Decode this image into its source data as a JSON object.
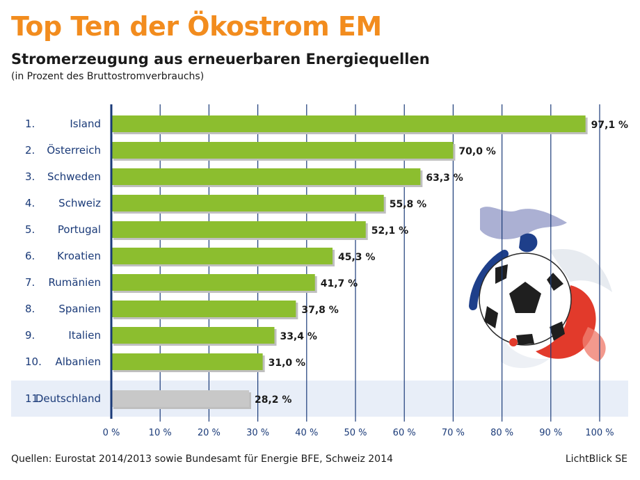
{
  "title": "Top Ten der Ökostrom EM",
  "subtitle": "Stromerzeugung aus erneuerbaren Energiequellen",
  "note": "(in Prozent des Bruttostromverbrauchs)",
  "footer": {
    "source": "Quellen: Eurostat 2014/2013 sowie Bundesamt für Energie BFE, Schweiz 2014",
    "credit": "LichtBlick SE"
  },
  "colors": {
    "bar": "#8cbe2f",
    "highlight_bar": "#c8c8c8",
    "axis": "#1a3a78",
    "gridline": "#1a3a78",
    "highlight_band": "#e8eef8",
    "title": "#f28c1e"
  },
  "chart_data": {
    "type": "bar",
    "orientation": "horizontal",
    "ranks": [
      "1.",
      "2.",
      "3.",
      "4.",
      "5.",
      "6.",
      "7.",
      "8.",
      "9.",
      "10.",
      "11."
    ],
    "categories": [
      "Island",
      "Österreich",
      "Schweden",
      "Schweiz",
      "Portugal",
      "Kroatien",
      "Rumänien",
      "Spanien",
      "Italien",
      "Albanien",
      "Deutschland"
    ],
    "values": [
      97.1,
      70.0,
      63.3,
      55.8,
      52.1,
      45.3,
      41.7,
      37.8,
      33.4,
      31.0,
      28.2
    ],
    "value_labels": [
      "97,1 %",
      "70,0 %",
      "63,3 %",
      "55,8 %",
      "52,1 %",
      "45,3 %",
      "41,7 %",
      "37,8 %",
      "33,4 %",
      "31,0 %",
      "28,2 %"
    ],
    "highlighted": "Deutschland",
    "xlim": [
      0,
      100
    ],
    "xticks": [
      "0 %",
      "10 %",
      "20 %",
      "30 %",
      "40 %",
      "50 %",
      "60 %",
      "70 %",
      "80 %",
      "90 %",
      "100 %"
    ],
    "grid": true
  }
}
